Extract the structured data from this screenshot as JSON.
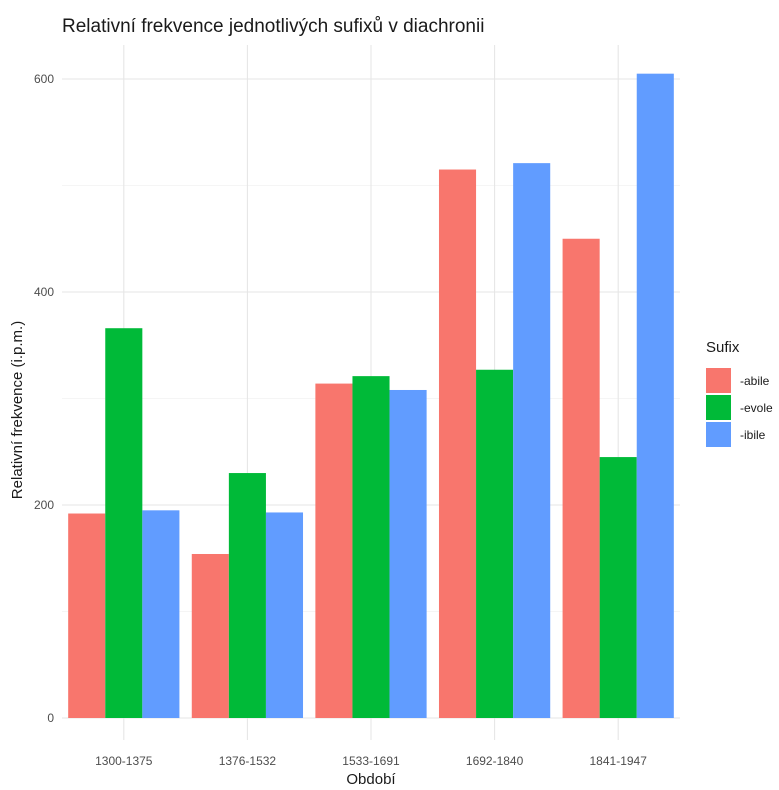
{
  "chart_data": {
    "type": "bar",
    "title": "Relativní frekvence jednotlivých sufixů v diachronii",
    "xlabel": "Období",
    "ylabel": "Relativní frekvence (i.p.m.)",
    "categories": [
      "1300-1375",
      "1376-1532",
      "1533-1691",
      "1692-1840",
      "1841-1947"
    ],
    "series": [
      {
        "name": "-abile",
        "color": "#F8766D",
        "values": [
          192,
          154,
          314,
          515,
          450
        ]
      },
      {
        "name": "-evole",
        "color": "#00BA38",
        "values": [
          366,
          230,
          321,
          327,
          245
        ]
      },
      {
        "name": "-ibile",
        "color": "#619CFF",
        "values": [
          195,
          193,
          308,
          521,
          605
        ]
      }
    ],
    "ylim": [
      0,
      620
    ],
    "y_major_ticks": [
      0,
      200,
      400,
      600
    ],
    "y_minor_ticks": [
      100,
      300,
      500
    ],
    "grid": true,
    "legend": {
      "title": "Sufix",
      "position": "right"
    }
  }
}
